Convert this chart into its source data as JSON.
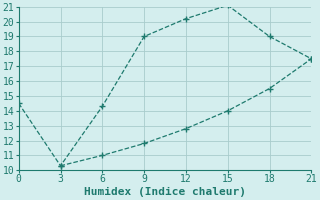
{
  "xlabel": "Humidex (Indice chaleur)",
  "background_color": "#d4eeee",
  "grid_color": "#a8cccc",
  "line_color": "#1e7a6e",
  "xlim": [
    0,
    21
  ],
  "ylim": [
    10,
    21
  ],
  "xticks": [
    0,
    3,
    6,
    9,
    12,
    15,
    18,
    21
  ],
  "yticks": [
    10,
    11,
    12,
    13,
    14,
    15,
    16,
    17,
    18,
    19,
    20,
    21
  ],
  "line1_x": [
    0,
    3,
    6,
    9,
    12,
    15,
    18,
    21
  ],
  "line1_y": [
    14.5,
    10.3,
    14.3,
    19.0,
    20.2,
    21.1,
    19.0,
    17.5
  ],
  "line2_x": [
    3,
    6,
    9,
    12,
    15,
    18,
    21
  ],
  "line2_y": [
    10.3,
    11.0,
    11.8,
    12.8,
    14.0,
    15.5,
    17.5
  ],
  "marker": "+",
  "marker_size": 4,
  "line_width": 0.9,
  "linestyle": "--",
  "font_family": "monospace",
  "xlabel_fontsize": 8,
  "tick_fontsize": 7
}
